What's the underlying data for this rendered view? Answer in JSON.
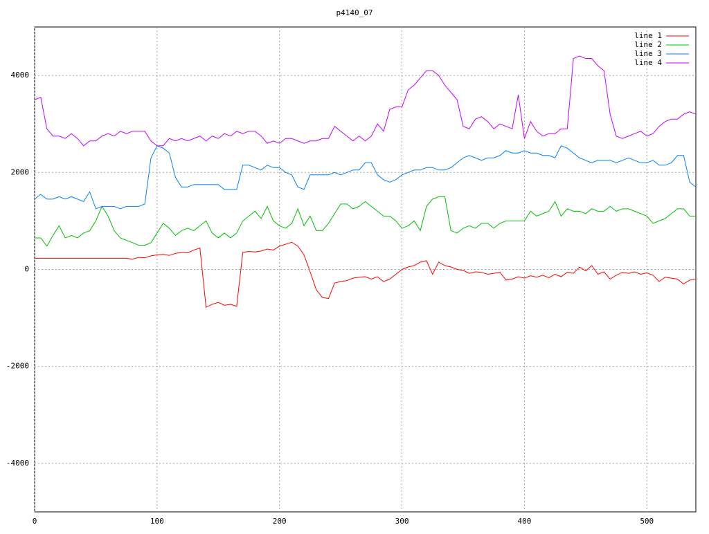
{
  "chart_data": {
    "type": "line",
    "title": "p4140_07",
    "x": [
      0,
      5,
      10,
      15,
      20,
      25,
      30,
      35,
      40,
      45,
      50,
      55,
      60,
      65,
      70,
      75,
      80,
      85,
      90,
      95,
      100,
      105,
      110,
      115,
      120,
      125,
      130,
      135,
      140,
      145,
      150,
      155,
      160,
      165,
      170,
      175,
      180,
      185,
      190,
      195,
      200,
      205,
      210,
      215,
      220,
      225,
      230,
      235,
      240,
      245,
      250,
      255,
      260,
      265,
      270,
      275,
      280,
      285,
      290,
      295,
      300,
      305,
      310,
      315,
      320,
      325,
      330,
      335,
      340,
      345,
      350,
      355,
      360,
      365,
      370,
      375,
      380,
      385,
      390,
      395,
      400,
      405,
      410,
      415,
      420,
      425,
      430,
      435,
      440,
      445,
      450,
      455,
      460,
      465,
      470,
      475,
      480,
      485,
      490,
      495,
      500,
      505,
      510,
      515,
      520,
      525,
      530,
      535,
      540
    ],
    "series": [
      {
        "name": "line 1",
        "color": "#ff0000",
        "values": [
          230,
          230,
          230,
          230,
          230,
          230,
          230,
          230,
          230,
          230,
          230,
          230,
          230,
          230,
          230,
          230,
          210,
          250,
          240,
          280,
          300,
          310,
          290,
          330,
          350,
          340,
          400,
          440,
          -780,
          -720,
          -680,
          -740,
          -720,
          -760,
          350,
          370,
          360,
          380,
          420,
          400,
          480,
          520,
          560,
          480,
          300,
          -50,
          -420,
          -580,
          -600,
          -280,
          -250,
          -230,
          -180,
          -160,
          -150,
          -200,
          -150,
          -250,
          -200,
          -100,
          0,
          50,
          80,
          150,
          180,
          -100,
          150,
          80,
          50,
          0,
          -20,
          -80,
          -50,
          -60,
          -100,
          -80,
          -60,
          -220,
          -200,
          -150,
          -180,
          -130,
          -160,
          -120,
          -170,
          -100,
          -150,
          -60,
          -80,
          50,
          -30,
          80,
          -100,
          -50,
          -200,
          -120,
          -60,
          -80,
          -50,
          -100,
          -70,
          -120,
          -250,
          -160,
          -180,
          -200,
          -300,
          -220,
          -200
        ]
      },
      {
        "name": "line 2",
        "color": "#00c000",
        "values": [
          650,
          650,
          480,
          700,
          900,
          650,
          700,
          650,
          750,
          800,
          1000,
          1300,
          1100,
          800,
          650,
          600,
          550,
          500,
          500,
          550,
          750,
          950,
          850,
          700,
          800,
          850,
          800,
          900,
          1000,
          750,
          650,
          750,
          650,
          750,
          1000,
          1100,
          1200,
          1050,
          1300,
          1000,
          900,
          850,
          950,
          1250,
          900,
          1100,
          800,
          800,
          950,
          1150,
          1350,
          1350,
          1250,
          1300,
          1400,
          1300,
          1200,
          1100,
          1100,
          1000,
          850,
          900,
          1000,
          800,
          1300,
          1450,
          1500,
          1500,
          800,
          750,
          850,
          900,
          850,
          950,
          950,
          850,
          950,
          1000,
          1000,
          1000,
          1000,
          1200,
          1100,
          1150,
          1200,
          1400,
          1100,
          1250,
          1200,
          1200,
          1150,
          1250,
          1200,
          1200,
          1300,
          1200,
          1250,
          1250,
          1200,
          1150,
          1100,
          950,
          1000,
          1050,
          1150,
          1250,
          1250,
          1100,
          1100
        ]
      },
      {
        "name": "line 3",
        "color": "#0080ff",
        "values": [
          1450,
          1550,
          1450,
          1450,
          1500,
          1450,
          1500,
          1450,
          1400,
          1600,
          1250,
          1300,
          1300,
          1300,
          1250,
          1300,
          1300,
          1300,
          1350,
          2300,
          2550,
          2500,
          2400,
          1900,
          1700,
          1700,
          1750,
          1750,
          1750,
          1750,
          1750,
          1650,
          1650,
          1650,
          2150,
          2150,
          2100,
          2050,
          2150,
          2100,
          2100,
          2000,
          1950,
          1700,
          1650,
          1950,
          1950,
          1950,
          1950,
          2000,
          1950,
          2000,
          2050,
          2050,
          2200,
          2200,
          1950,
          1850,
          1800,
          1850,
          1950,
          2000,
          2050,
          2050,
          2100,
          2100,
          2050,
          2050,
          2100,
          2200,
          2300,
          2350,
          2300,
          2250,
          2300,
          2300,
          2350,
          2450,
          2400,
          2400,
          2450,
          2400,
          2400,
          2350,
          2350,
          2300,
          2550,
          2500,
          2400,
          2300,
          2250,
          2200,
          2250,
          2250,
          2250,
          2200,
          2250,
          2300,
          2250,
          2200,
          2200,
          2250,
          2150,
          2150,
          2200,
          2350,
          2350,
          1800,
          1700
        ]
      },
      {
        "name": "line 4",
        "color": "#c000ff",
        "values": [
          3500,
          3550,
          2900,
          2750,
          2750,
          2700,
          2800,
          2700,
          2550,
          2650,
          2650,
          2750,
          2800,
          2750,
          2850,
          2800,
          2850,
          2850,
          2850,
          2650,
          2550,
          2550,
          2700,
          2650,
          2700,
          2650,
          2700,
          2750,
          2650,
          2750,
          2700,
          2800,
          2750,
          2850,
          2800,
          2850,
          2850,
          2750,
          2600,
          2650,
          2600,
          2700,
          2700,
          2650,
          2600,
          2650,
          2650,
          2700,
          2700,
          2950,
          2850,
          2750,
          2650,
          2750,
          2650,
          2750,
          3000,
          2850,
          3300,
          3350,
          3350,
          3700,
          3800,
          3950,
          4100,
          4100,
          4000,
          3800,
          3650,
          3500,
          2950,
          2900,
          3100,
          3150,
          3050,
          2900,
          3000,
          2950,
          2900,
          3600,
          2700,
          3050,
          2850,
          2750,
          2800,
          2800,
          2900,
          2900,
          4350,
          4400,
          4350,
          4350,
          4200,
          4100,
          3200,
          2750,
          2700,
          2750,
          2800,
          2850,
          2750,
          2800,
          2950,
          3050,
          3100,
          3100,
          3200,
          3250,
          3200
        ]
      }
    ],
    "xlim": [
      0,
      540
    ],
    "xticks": [
      0,
      100,
      200,
      300,
      400,
      500
    ],
    "ylim": [
      -5000,
      5000
    ],
    "yticks": [
      -4000,
      -2000,
      0,
      2000,
      4000
    ],
    "grid": true,
    "legend": "top-right"
  }
}
